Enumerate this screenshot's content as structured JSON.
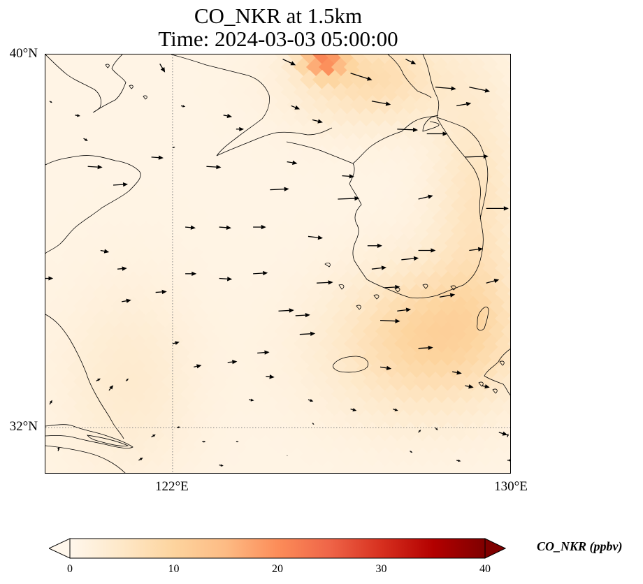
{
  "title": {
    "line1": "CO_NKR at 1.5km",
    "line2": "Time: 2024-03-03 05:00:00"
  },
  "map": {
    "lon_range": [
      119,
      130
    ],
    "lat_range": [
      31,
      40
    ],
    "lat_ticks": [
      {
        "value": 40,
        "label": "40°N"
      },
      {
        "value": 32,
        "label": "32°N"
      }
    ],
    "lon_ticks": [
      {
        "value": 122,
        "label": "122°E"
      },
      {
        "value": 130,
        "label": "130°E"
      }
    ],
    "gridlines": {
      "lon": [
        122
      ],
      "lat": [
        32
      ],
      "style": "dotted"
    },
    "colormap": "OrRd",
    "concentration_field": {
      "background_ppbv": 1,
      "plumes": [
        {
          "lon": 125.6,
          "lat": 39.9,
          "peak_ppbv": 18,
          "spread_lon": 0.5,
          "spread_lat": 0.35
        },
        {
          "lon": 126.7,
          "lat": 39.5,
          "peak_ppbv": 7,
          "spread_lon": 1.8,
          "spread_lat": 1.0
        },
        {
          "lon": 128.3,
          "lat": 34.2,
          "peak_ppbv": 6,
          "spread_lon": 2.0,
          "spread_lat": 1.4
        },
        {
          "lon": 127.8,
          "lat": 33.5,
          "peak_ppbv": 4,
          "spread_lon": 2.5,
          "spread_lat": 1.5
        },
        {
          "lon": 129.2,
          "lat": 36.8,
          "peak_ppbv": 5,
          "spread_lon": 1.0,
          "spread_lat": 2.5
        },
        {
          "lon": 121.0,
          "lat": 33.0,
          "peak_ppbv": 3,
          "spread_lon": 1.6,
          "spread_lat": 2.0
        }
      ]
    },
    "wind_vectors": [
      {
        "lon": 121.7,
        "lat": 39.8,
        "u": 0.12,
        "v": -0.2
      },
      {
        "lon": 124.6,
        "lat": 39.9,
        "u": 0.3,
        "v": -0.14
      },
      {
        "lon": 126.2,
        "lat": 39.6,
        "u": 0.5,
        "v": -0.16
      },
      {
        "lon": 127.5,
        "lat": 39.9,
        "u": 0.24,
        "v": -0.12
      },
      {
        "lon": 128.2,
        "lat": 39.3,
        "u": 0.48,
        "v": -0.04
      },
      {
        "lon": 129.0,
        "lat": 39.3,
        "u": 0.48,
        "v": -0.1
      },
      {
        "lon": 119.1,
        "lat": 39.0,
        "u": 0.06,
        "v": -0.04
      },
      {
        "lon": 119.7,
        "lat": 38.7,
        "u": 0.12,
        "v": -0.02
      },
      {
        "lon": 122.2,
        "lat": 38.9,
        "u": 0.1,
        "v": -0.02
      },
      {
        "lon": 123.2,
        "lat": 38.7,
        "u": 0.2,
        "v": -0.04
      },
      {
        "lon": 123.5,
        "lat": 38.4,
        "u": 0.18,
        "v": 0.0
      },
      {
        "lon": 124.8,
        "lat": 38.9,
        "u": 0.2,
        "v": -0.08
      },
      {
        "lon": 125.3,
        "lat": 38.6,
        "u": 0.24,
        "v": -0.06
      },
      {
        "lon": 126.7,
        "lat": 39.0,
        "u": 0.44,
        "v": -0.08
      },
      {
        "lon": 128.7,
        "lat": 38.9,
        "u": 0.34,
        "v": 0.06
      },
      {
        "lon": 119.9,
        "lat": 38.2,
        "u": 0.1,
        "v": -0.06
      },
      {
        "lon": 122.0,
        "lat": 38.0,
        "u": 0.06,
        "v": 0.02
      },
      {
        "lon": 124.7,
        "lat": 37.7,
        "u": 0.24,
        "v": -0.04
      },
      {
        "lon": 126.0,
        "lat": 37.4,
        "u": 0.28,
        "v": -0.02
      },
      {
        "lon": 127.3,
        "lat": 38.4,
        "u": 0.48,
        "v": -0.02
      },
      {
        "lon": 128.0,
        "lat": 38.3,
        "u": 0.48,
        "v": 0.0
      },
      {
        "lon": 128.9,
        "lat": 37.8,
        "u": 0.54,
        "v": 0.02
      },
      {
        "lon": 122.8,
        "lat": 37.6,
        "u": 0.34,
        "v": -0.02
      },
      {
        "lon": 121.5,
        "lat": 37.8,
        "u": 0.28,
        "v": -0.02
      },
      {
        "lon": 120.0,
        "lat": 37.6,
        "u": 0.34,
        "v": -0.02
      },
      {
        "lon": 120.6,
        "lat": 37.2,
        "u": 0.34,
        "v": 0.02
      },
      {
        "lon": 124.3,
        "lat": 37.1,
        "u": 0.44,
        "v": 0.02
      },
      {
        "lon": 125.9,
        "lat": 36.9,
        "u": 0.5,
        "v": 0.02
      },
      {
        "lon": 127.8,
        "lat": 36.9,
        "u": 0.34,
        "v": 0.08
      },
      {
        "lon": 129.4,
        "lat": 36.7,
        "u": 0.52,
        "v": 0.0
      },
      {
        "lon": 122.3,
        "lat": 36.3,
        "u": 0.24,
        "v": -0.02
      },
      {
        "lon": 123.1,
        "lat": 36.3,
        "u": 0.28,
        "v": -0.02
      },
      {
        "lon": 123.9,
        "lat": 36.3,
        "u": 0.3,
        "v": 0.0
      },
      {
        "lon": 125.2,
        "lat": 36.1,
        "u": 0.34,
        "v": -0.04
      },
      {
        "lon": 126.6,
        "lat": 35.9,
        "u": 0.34,
        "v": 0.0
      },
      {
        "lon": 127.4,
        "lat": 35.6,
        "u": 0.4,
        "v": 0.04
      },
      {
        "lon": 127.8,
        "lat": 35.8,
        "u": 0.4,
        "v": 0.0
      },
      {
        "lon": 129.0,
        "lat": 35.8,
        "u": 0.32,
        "v": 0.04
      },
      {
        "lon": 120.3,
        "lat": 35.8,
        "u": 0.2,
        "v": -0.04
      },
      {
        "lon": 120.7,
        "lat": 35.4,
        "u": 0.22,
        "v": 0.02
      },
      {
        "lon": 119.0,
        "lat": 35.2,
        "u": 0.18,
        "v": 0.0
      },
      {
        "lon": 122.3,
        "lat": 35.3,
        "u": 0.26,
        "v": 0.0
      },
      {
        "lon": 123.1,
        "lat": 35.2,
        "u": 0.3,
        "v": -0.02
      },
      {
        "lon": 123.9,
        "lat": 35.3,
        "u": 0.34,
        "v": 0.02
      },
      {
        "lon": 125.4,
        "lat": 35.1,
        "u": 0.38,
        "v": 0.02
      },
      {
        "lon": 126.7,
        "lat": 35.4,
        "u": 0.34,
        "v": 0.04
      },
      {
        "lon": 127.0,
        "lat": 35.0,
        "u": 0.36,
        "v": 0.02
      },
      {
        "lon": 128.3,
        "lat": 34.8,
        "u": 0.36,
        "v": 0.06
      },
      {
        "lon": 129.4,
        "lat": 35.1,
        "u": 0.3,
        "v": 0.08
      },
      {
        "lon": 120.8,
        "lat": 34.7,
        "u": 0.22,
        "v": 0.04
      },
      {
        "lon": 121.6,
        "lat": 34.9,
        "u": 0.26,
        "v": 0.02
      },
      {
        "lon": 124.5,
        "lat": 34.5,
        "u": 0.36,
        "v": 0.02
      },
      {
        "lon": 124.9,
        "lat": 34.4,
        "u": 0.34,
        "v": 0.02
      },
      {
        "lon": 125.0,
        "lat": 34.0,
        "u": 0.36,
        "v": 0.02
      },
      {
        "lon": 126.9,
        "lat": 34.3,
        "u": 0.46,
        "v": -0.02
      },
      {
        "lon": 127.3,
        "lat": 34.5,
        "u": 0.32,
        "v": 0.04
      },
      {
        "lon": 127.8,
        "lat": 33.7,
        "u": 0.34,
        "v": 0.02
      },
      {
        "lon": 122.0,
        "lat": 33.8,
        "u": 0.16,
        "v": 0.04
      },
      {
        "lon": 122.5,
        "lat": 33.3,
        "u": 0.18,
        "v": 0.04
      },
      {
        "lon": 123.3,
        "lat": 33.4,
        "u": 0.22,
        "v": 0.02
      },
      {
        "lon": 124.0,
        "lat": 33.6,
        "u": 0.28,
        "v": 0.02
      },
      {
        "lon": 124.2,
        "lat": 33.1,
        "u": 0.2,
        "v": -0.02
      },
      {
        "lon": 126.9,
        "lat": 33.3,
        "u": 0.26,
        "v": -0.04
      },
      {
        "lon": 128.6,
        "lat": 33.2,
        "u": 0.22,
        "v": -0.04
      },
      {
        "lon": 128.9,
        "lat": 32.9,
        "u": 0.2,
        "v": -0.04
      },
      {
        "lon": 129.3,
        "lat": 32.9,
        "u": 0.18,
        "v": -0.04
      },
      {
        "lon": 120.5,
        "lat": 32.8,
        "u": 0.1,
        "v": 0.12
      },
      {
        "lon": 120.2,
        "lat": 33.0,
        "u": 0.1,
        "v": 0.06
      },
      {
        "lon": 120.9,
        "lat": 33.0,
        "u": 0.06,
        "v": 0.06
      },
      {
        "lon": 119.1,
        "lat": 32.5,
        "u": 0.06,
        "v": 0.1
      },
      {
        "lon": 123.8,
        "lat": 32.6,
        "u": 0.12,
        "v": -0.02
      },
      {
        "lon": 125.2,
        "lat": 32.6,
        "u": 0.12,
        "v": -0.04
      },
      {
        "lon": 126.2,
        "lat": 32.4,
        "u": 0.14,
        "v": -0.04
      },
      {
        "lon": 127.2,
        "lat": 32.4,
        "u": 0.12,
        "v": -0.04
      },
      {
        "lon": 125.3,
        "lat": 32.1,
        "u": 0.04,
        "v": -0.04
      },
      {
        "lon": 121.5,
        "lat": 31.8,
        "u": 0.1,
        "v": 0.06
      },
      {
        "lon": 122.1,
        "lat": 32.0,
        "u": 0.08,
        "v": 0.02
      },
      {
        "lon": 122.7,
        "lat": 31.7,
        "u": 0.08,
        "v": 0.0
      },
      {
        "lon": 123.5,
        "lat": 31.7,
        "u": 0.06,
        "v": 0.0
      },
      {
        "lon": 127.8,
        "lat": 31.9,
        "u": 0.06,
        "v": 0.06
      },
      {
        "lon": 128.2,
        "lat": 32.0,
        "u": 0.06,
        "v": -0.06
      },
      {
        "lon": 127.6,
        "lat": 31.5,
        "u": 0.06,
        "v": -0.04
      },
      {
        "lon": 129.7,
        "lat": 31.9,
        "u": 0.2,
        "v": -0.06
      },
      {
        "lon": 129.9,
        "lat": 31.8,
        "u": 0.02,
        "v": 0.08
      },
      {
        "lon": 119.3,
        "lat": 31.5,
        "u": 0.02,
        "v": 0.1
      },
      {
        "lon": 121.2,
        "lat": 31.3,
        "u": 0.1,
        "v": 0.06
      },
      {
        "lon": 123.1,
        "lat": 31.2,
        "u": 0.1,
        "v": -0.02
      },
      {
        "lon": 124.7,
        "lat": 31.4,
        "u": 0.02,
        "v": 0.0
      },
      {
        "lon": 129.9,
        "lat": 31.3,
        "u": 0.1,
        "v": 0.0
      },
      {
        "lon": 128.7,
        "lat": 31.3,
        "u": 0.1,
        "v": -0.02
      }
    ]
  },
  "colorbar": {
    "label": "CO_NKR (ppbv)",
    "range": [
      0,
      40
    ],
    "ticks": [
      "0",
      "10",
      "20",
      "30",
      "40"
    ],
    "extend": "both",
    "stops": [
      "#fff7ec",
      "#fee8c8",
      "#fdd49e",
      "#fdbb84",
      "#fc8d59",
      "#ef6548",
      "#d7301f",
      "#b30000",
      "#7f0000"
    ]
  }
}
